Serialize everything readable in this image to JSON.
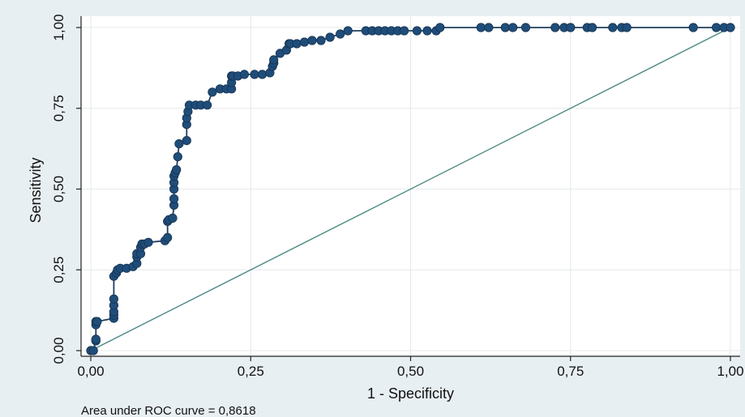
{
  "chart_data": {
    "type": "line",
    "title": "",
    "xlabel": "1 - Specificity",
    "ylabel": "Sensitivity",
    "xlim": [
      0,
      1
    ],
    "ylim": [
      0,
      1
    ],
    "x_ticks": [
      "0,00",
      "0,25",
      "0,50",
      "0,75",
      "1,00"
    ],
    "y_ticks": [
      "0,00",
      "0,25",
      "0,50",
      "0,75",
      "1,00"
    ],
    "x_tick_values": [
      0,
      0.25,
      0.5,
      0.75,
      1
    ],
    "y_tick_values": [
      0,
      0.25,
      0.5,
      0.75,
      1
    ],
    "grid": true,
    "note": "Area under ROC curve = 0,8618",
    "colors": {
      "curve": "#1f3f5f",
      "marker": "#1f4d7a",
      "reference": "#4f8a86",
      "background": "#e8eff3",
      "plot": "#ffffff"
    },
    "series": [
      {
        "x": [
          0.0,
          0.004,
          0.008,
          0.008,
          0.008,
          0.008,
          0.01,
          0.036,
          0.036,
          0.036,
          0.036,
          0.036,
          0.036,
          0.04,
          0.042,
          0.042,
          0.046,
          0.056,
          0.066,
          0.072,
          0.072,
          0.072,
          0.078,
          0.078,
          0.08,
          0.084,
          0.09,
          0.116,
          0.12,
          0.12,
          0.122,
          0.128,
          0.13,
          0.13,
          0.13,
          0.13,
          0.13,
          0.132,
          0.134,
          0.136,
          0.138,
          0.15,
          0.15,
          0.15,
          0.152,
          0.154,
          0.164,
          0.172,
          0.182,
          0.19,
          0.202,
          0.212,
          0.22,
          0.22,
          0.22,
          0.222,
          0.23,
          0.24,
          0.256,
          0.268,
          0.28,
          0.284,
          0.286,
          0.286,
          0.296,
          0.306,
          0.31,
          0.312,
          0.322,
          0.334,
          0.346,
          0.36,
          0.374,
          0.39,
          0.402,
          0.43,
          0.44,
          0.45,
          0.46,
          0.47,
          0.48,
          0.49,
          0.51,
          0.526,
          0.54,
          0.546,
          0.61,
          0.622,
          0.648,
          0.66,
          0.68,
          0.726,
          0.74,
          0.75,
          0.776,
          0.784,
          0.816,
          0.83,
          0.838,
          0.942,
          0.978,
          0.99,
          1.0
        ],
        "y": [
          0.0,
          0.0,
          0.03,
          0.035,
          0.08,
          0.09,
          0.09,
          0.1,
          0.11,
          0.12,
          0.14,
          0.16,
          0.23,
          0.24,
          0.25,
          0.25,
          0.255,
          0.255,
          0.26,
          0.27,
          0.29,
          0.3,
          0.3,
          0.32,
          0.33,
          0.33,
          0.335,
          0.34,
          0.35,
          0.4,
          0.405,
          0.41,
          0.45,
          0.47,
          0.5,
          0.52,
          0.54,
          0.55,
          0.56,
          0.6,
          0.64,
          0.65,
          0.7,
          0.72,
          0.74,
          0.76,
          0.76,
          0.76,
          0.76,
          0.8,
          0.81,
          0.81,
          0.81,
          0.83,
          0.85,
          0.85,
          0.85,
          0.855,
          0.855,
          0.855,
          0.86,
          0.88,
          0.89,
          0.9,
          0.92,
          0.93,
          0.95,
          0.95,
          0.95,
          0.955,
          0.96,
          0.96,
          0.97,
          0.98,
          0.99,
          0.99,
          0.99,
          0.99,
          0.99,
          0.99,
          0.99,
          0.99,
          0.99,
          0.99,
          0.99,
          1.0,
          1.0,
          1.0,
          1.0,
          1.0,
          1.0,
          1.0,
          1.0,
          1.0,
          1.0,
          1.0,
          1.0,
          1.0,
          1.0,
          1.0,
          1.0,
          1.0,
          1.0
        ]
      }
    ],
    "reference_line": {
      "x": [
        0,
        1
      ],
      "y": [
        0,
        1
      ]
    }
  }
}
